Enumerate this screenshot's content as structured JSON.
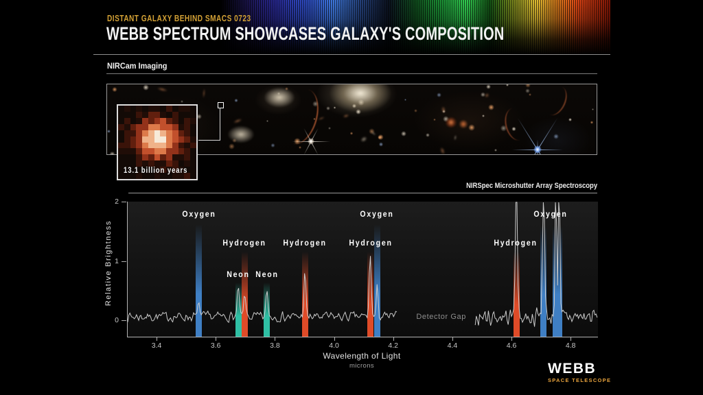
{
  "header": {
    "eyebrow": "DISTANT GALAXY BEHIND SMACS 0723",
    "title": "WEBB SPECTRUM SHOWCASES GALAXY'S COMPOSITION"
  },
  "nircam": {
    "label": "NIRCam Imaging",
    "inset_caption": "13.1 billion years"
  },
  "nirspec": {
    "label": "NIRSpec Microshutter Array Spectroscopy"
  },
  "footer": {
    "logo_title": "WEBB",
    "logo_subtitle": "SPACE TELESCOPE"
  },
  "colors": {
    "accent_yellow": "#d2a035",
    "logo_yellow": "#e8a33d",
    "oxygen_blue": "#3f7fc4",
    "neon_teal": "#2fbfa4",
    "hydrogen_red": "#df4b28",
    "rule_gray": "#8f8f8f",
    "trace_gray": "#cccccc"
  },
  "chart_data": {
    "type": "line",
    "title": "",
    "xlabel": "Wavelength of Light",
    "xlabel_sub": "microns",
    "ylabel": "Relative Brightness",
    "xlim": [
      3.3,
      4.89
    ],
    "ylim": [
      -0.28,
      2.0
    ],
    "x_ticks": [
      3.4,
      3.6,
      3.8,
      4.0,
      4.2,
      4.4,
      4.6,
      4.8
    ],
    "y_ticks": [
      0,
      1,
      2
    ],
    "grid": false,
    "legend": "none",
    "detector_gap": {
      "label": "Detector Gap",
      "x_range": [
        4.212,
        4.475
      ],
      "label_x": 4.36,
      "label_level": 0.05
    },
    "baseline_noise": {
      "base_level": 0.06,
      "left_amplitude": 0.1,
      "right_amplitude": 0.18
    },
    "emission_lines": [
      {
        "element": "Oxygen",
        "wavelength": 3.541,
        "color": "#3f7fc4",
        "peak": 0.25,
        "band_top": 1.62
      },
      {
        "element": "Neon",
        "wavelength": 3.674,
        "color": "#2fbfa4",
        "peak": 0.5,
        "band_top": 0.64
      },
      {
        "element": "Hydrogen",
        "wavelength": 3.696,
        "color": "#df4b28",
        "peak": 0.38,
        "band_top": 1.16
      },
      {
        "element": "Neon",
        "wavelength": 3.771,
        "color": "#2fbfa4",
        "peak": 0.45,
        "band_top": 0.64
      },
      {
        "element": "Hydrogen",
        "wavelength": 3.899,
        "color": "#df4b28",
        "peak": 0.75,
        "band_top": 1.16
      },
      {
        "element": "Hydrogen",
        "wavelength": 4.12,
        "color": "#df4b28",
        "peak": 1.1,
        "band_top": 1.16
      },
      {
        "element": "Oxygen",
        "wavelength": 4.144,
        "color": "#3f7fc4",
        "peak": 0.48,
        "band_top": 1.62
      },
      {
        "element": "Hydrogen",
        "wavelength": 4.614,
        "color": "#df4b28",
        "peak": 2.6,
        "band_top": 1.16
      },
      {
        "element": "Oxygen",
        "wavelength": 4.706,
        "color": "#3f7fc4",
        "peak": 2.6,
        "band_top": 1.6
      },
      {
        "element": "Oxygen",
        "wavelength": 4.753,
        "color": "#3f7fc4",
        "peak": 2.6,
        "band_top": 1.6,
        "double": true
      }
    ],
    "line_labels": [
      {
        "text": "Oxygen",
        "wavelength": 3.541,
        "level": 1.78
      },
      {
        "text": "Neon",
        "wavelength": 3.673,
        "level": 0.76
      },
      {
        "text": "Hydrogen",
        "wavelength": 3.694,
        "level": 1.3
      },
      {
        "text": "Neon",
        "wavelength": 3.771,
        "level": 0.76
      },
      {
        "text": "Hydrogen",
        "wavelength": 3.899,
        "level": 1.3
      },
      {
        "text": "Hydrogen",
        "wavelength": 4.121,
        "level": 1.3
      },
      {
        "text": "Oxygen",
        "wavelength": 4.142,
        "level": 1.78
      },
      {
        "text": "Hydrogen",
        "wavelength": 4.612,
        "level": 1.3
      },
      {
        "text": "Oxygen",
        "wavelength": 4.729,
        "level": 1.78
      }
    ]
  }
}
